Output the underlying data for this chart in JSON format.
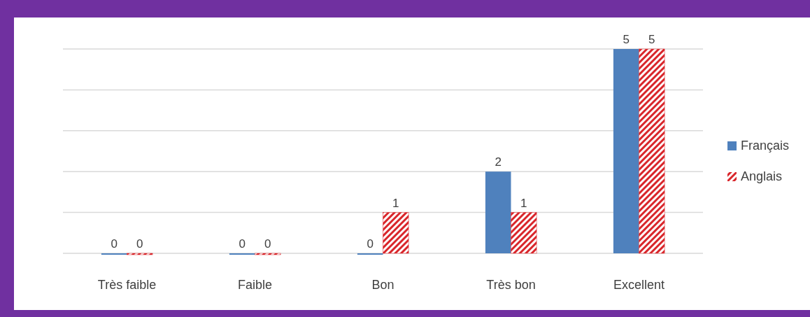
{
  "chart_data": {
    "type": "bar",
    "categories": [
      "Très faible",
      "Faible",
      "Bon",
      "Très bon",
      "Excellent"
    ],
    "series": [
      {
        "name": "Français",
        "color": "#4f81bd",
        "values": [
          0,
          0,
          0,
          2,
          5
        ]
      },
      {
        "name": "Anglais",
        "color": "#d9262b",
        "values": [
          0,
          0,
          1,
          1,
          5
        ]
      }
    ],
    "ylim": [
      0,
      5
    ],
    "yticks": [
      {
        "value": 0,
        "label": null
      },
      {
        "value": 1,
        "label": null
      },
      {
        "value": 2,
        "label": null
      },
      {
        "value": 3,
        "label": null
      },
      {
        "value": 4,
        "label": null
      },
      {
        "value": 5,
        "label": null
      }
    ],
    "tick_labels": "x",
    "grid": "y",
    "data_labels": true,
    "legend": "right"
  }
}
